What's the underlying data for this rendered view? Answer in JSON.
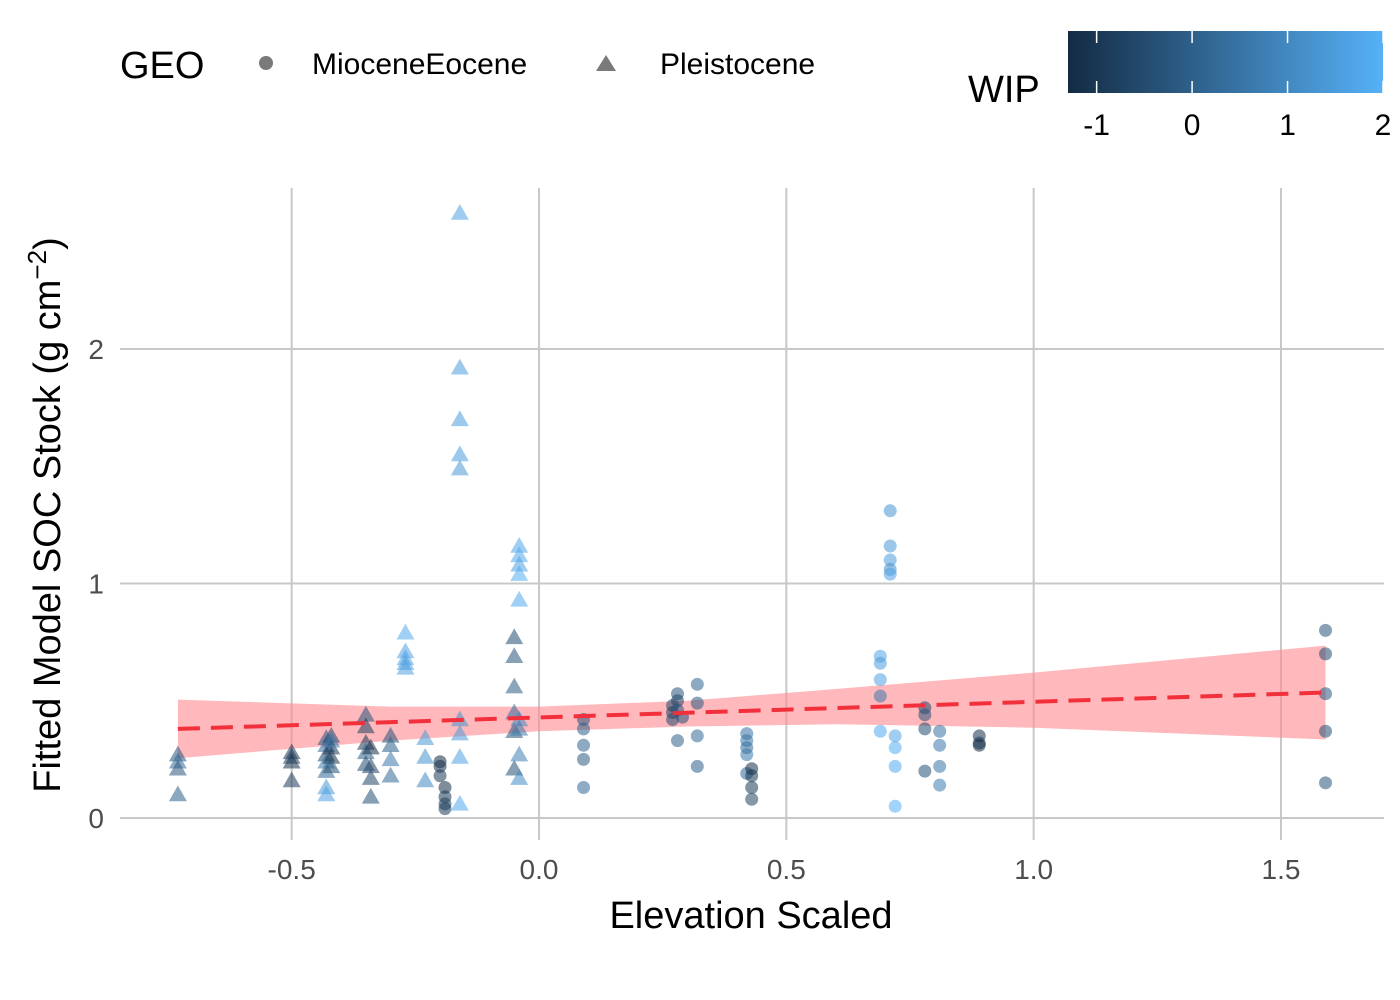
{
  "chart_data": {
    "type": "scatter",
    "title": "",
    "xlabel": "Elevation Scaled",
    "ylabel": "Fitted Model SOC Stock (g cm",
    "ylabel_sup": "−2",
    "ylabel_close": ")",
    "xlim": [
      -0.85,
      1.7
    ],
    "ylim": [
      -0.05,
      2.7
    ],
    "x_ticks": [
      -0.5,
      0.0,
      0.5,
      1.0,
      1.5
    ],
    "x_tick_labels": [
      "-0.5",
      "0.0",
      "0.5",
      "1.0",
      "1.5"
    ],
    "y_ticks": [
      0,
      1,
      2
    ],
    "y_tick_labels": [
      "0",
      "1",
      "2"
    ],
    "grid": true,
    "legend_position": "top",
    "shape_legend": {
      "title": "GEO",
      "items": [
        {
          "label": "MioceneEocene",
          "shape": "circle"
        },
        {
          "label": "Pleistocene",
          "shape": "triangle"
        }
      ]
    },
    "color_legend": {
      "title": "WIP",
      "range": [
        -1.3,
        2.0
      ],
      "ticks": [
        -1,
        0,
        1,
        2
      ],
      "tick_labels": [
        "-1",
        "0",
        "1",
        "2"
      ],
      "low_color": "#132b43",
      "high_color": "#56b1f7"
    },
    "trend": {
      "type": "linear",
      "line_color": "#f2303b",
      "band_color": "#ff8a90",
      "x": [
        -0.73,
        1.59
      ],
      "fit": [
        0.38,
        0.535
      ],
      "lower": [
        0.255,
        0.335
      ],
      "upper": [
        0.505,
        0.735
      ],
      "band_samples": [
        {
          "x": -0.73,
          "lower": 0.255,
          "upper": 0.505
        },
        {
          "x": -0.3,
          "lower": 0.33,
          "upper": 0.475
        },
        {
          "x": 0.0,
          "lower": 0.37,
          "upper": 0.475
        },
        {
          "x": 0.3,
          "lower": 0.39,
          "upper": 0.5
        },
        {
          "x": 0.6,
          "lower": 0.4,
          "upper": 0.55
        },
        {
          "x": 1.0,
          "lower": 0.385,
          "upper": 0.62
        },
        {
          "x": 1.59,
          "lower": 0.335,
          "upper": 0.735
        }
      ]
    },
    "series": [
      {
        "name": "Pleistocene",
        "shape": "triangle",
        "points": [
          {
            "x": -0.73,
            "y": 0.27,
            "wip": -0.3
          },
          {
            "x": -0.73,
            "y": 0.24,
            "wip": 0.2
          },
          {
            "x": -0.73,
            "y": 0.21,
            "wip": -0.2
          },
          {
            "x": -0.73,
            "y": 0.1,
            "wip": 0.0
          },
          {
            "x": -0.5,
            "y": 0.28,
            "wip": -1.0
          },
          {
            "x": -0.5,
            "y": 0.26,
            "wip": -0.8
          },
          {
            "x": -0.5,
            "y": 0.24,
            "wip": -1.1
          },
          {
            "x": -0.5,
            "y": 0.16,
            "wip": -0.9
          },
          {
            "x": -0.43,
            "y": 0.34,
            "wip": -0.2
          },
          {
            "x": -0.43,
            "y": 0.31,
            "wip": 0.3
          },
          {
            "x": -0.43,
            "y": 0.27,
            "wip": -0.6
          },
          {
            "x": -0.43,
            "y": 0.24,
            "wip": 0.6
          },
          {
            "x": -0.43,
            "y": 0.2,
            "wip": 0.2
          },
          {
            "x": -0.43,
            "y": 0.13,
            "wip": 1.4
          },
          {
            "x": -0.43,
            "y": 0.1,
            "wip": 1.6
          },
          {
            "x": -0.42,
            "y": 0.35,
            "wip": -0.5
          },
          {
            "x": -0.42,
            "y": 0.3,
            "wip": -0.9
          },
          {
            "x": -0.42,
            "y": 0.26,
            "wip": -1.1
          },
          {
            "x": -0.42,
            "y": 0.22,
            "wip": -0.4
          },
          {
            "x": -0.42,
            "y": 0.33,
            "wip": 0.5
          },
          {
            "x": -0.35,
            "y": 0.44,
            "wip": -0.3
          },
          {
            "x": -0.35,
            "y": 0.39,
            "wip": -0.8
          },
          {
            "x": -0.35,
            "y": 0.32,
            "wip": -1.0
          },
          {
            "x": -0.35,
            "y": 0.28,
            "wip": 0.0
          },
          {
            "x": -0.35,
            "y": 0.23,
            "wip": -0.5
          },
          {
            "x": -0.34,
            "y": 0.3,
            "wip": -1.2
          },
          {
            "x": -0.34,
            "y": 0.22,
            "wip": -0.7
          },
          {
            "x": -0.34,
            "y": 0.17,
            "wip": -0.6
          },
          {
            "x": -0.34,
            "y": 0.09,
            "wip": -0.4
          },
          {
            "x": -0.3,
            "y": 0.35,
            "wip": -0.3
          },
          {
            "x": -0.3,
            "y": 0.31,
            "wip": 0.0
          },
          {
            "x": -0.3,
            "y": 0.25,
            "wip": 0.6
          },
          {
            "x": -0.3,
            "y": 0.18,
            "wip": 0.2
          },
          {
            "x": -0.27,
            "y": 0.79,
            "wip": 1.8
          },
          {
            "x": -0.27,
            "y": 0.71,
            "wip": 1.6
          },
          {
            "x": -0.27,
            "y": 0.68,
            "wip": 1.7
          },
          {
            "x": -0.27,
            "y": 0.66,
            "wip": 1.5
          },
          {
            "x": -0.27,
            "y": 0.64,
            "wip": 1.6
          },
          {
            "x": -0.23,
            "y": 0.34,
            "wip": 1.4
          },
          {
            "x": -0.23,
            "y": 0.26,
            "wip": 1.2
          },
          {
            "x": -0.23,
            "y": 0.16,
            "wip": 1.0
          },
          {
            "x": -0.16,
            "y": 2.58,
            "wip": 1.6
          },
          {
            "x": -0.16,
            "y": 1.92,
            "wip": 1.5
          },
          {
            "x": -0.16,
            "y": 1.7,
            "wip": 1.5
          },
          {
            "x": -0.16,
            "y": 1.55,
            "wip": 1.5
          },
          {
            "x": -0.16,
            "y": 1.49,
            "wip": 1.4
          },
          {
            "x": -0.16,
            "y": 0.42,
            "wip": 1.2
          },
          {
            "x": -0.16,
            "y": 0.36,
            "wip": 1.4
          },
          {
            "x": -0.16,
            "y": 0.26,
            "wip": 1.6
          },
          {
            "x": -0.16,
            "y": 0.06,
            "wip": 1.8
          },
          {
            "x": -0.05,
            "y": 0.77,
            "wip": -0.5
          },
          {
            "x": -0.05,
            "y": 0.69,
            "wip": -0.3
          },
          {
            "x": -0.05,
            "y": 0.56,
            "wip": -0.1
          },
          {
            "x": -0.05,
            "y": 0.45,
            "wip": 0.3
          },
          {
            "x": -0.05,
            "y": 0.37,
            "wip": -0.2
          },
          {
            "x": -0.05,
            "y": 0.21,
            "wip": -0.4
          },
          {
            "x": -0.04,
            "y": 1.16,
            "wip": 1.7
          },
          {
            "x": -0.04,
            "y": 1.12,
            "wip": 1.8
          },
          {
            "x": -0.04,
            "y": 1.08,
            "wip": 1.6
          },
          {
            "x": -0.04,
            "y": 1.04,
            "wip": 1.9
          },
          {
            "x": -0.04,
            "y": 0.93,
            "wip": 1.8
          },
          {
            "x": -0.04,
            "y": 0.42,
            "wip": 1.0
          },
          {
            "x": -0.04,
            "y": 0.38,
            "wip": 0.6
          },
          {
            "x": -0.04,
            "y": 0.27,
            "wip": 0.8
          },
          {
            "x": -0.04,
            "y": 0.17,
            "wip": 1.1
          }
        ]
      },
      {
        "name": "MioceneEocene",
        "shape": "circle",
        "points": [
          {
            "x": -0.2,
            "y": 0.24,
            "wip": -1.3
          },
          {
            "x": -0.2,
            "y": 0.22,
            "wip": -1.1
          },
          {
            "x": -0.2,
            "y": 0.18,
            "wip": -0.9
          },
          {
            "x": -0.19,
            "y": 0.13,
            "wip": -1.2
          },
          {
            "x": -0.19,
            "y": 0.09,
            "wip": -1.0
          },
          {
            "x": -0.19,
            "y": 0.06,
            "wip": -0.8
          },
          {
            "x": -0.19,
            "y": 0.04,
            "wip": -0.9
          },
          {
            "x": 0.09,
            "y": 0.42,
            "wip": -0.3
          },
          {
            "x": 0.09,
            "y": 0.38,
            "wip": 0.0
          },
          {
            "x": 0.09,
            "y": 0.31,
            "wip": 0.1
          },
          {
            "x": 0.09,
            "y": 0.25,
            "wip": -0.1
          },
          {
            "x": 0.09,
            "y": 0.13,
            "wip": 0.2
          },
          {
            "x": 0.27,
            "y": 0.48,
            "wip": -0.6
          },
          {
            "x": 0.27,
            "y": 0.45,
            "wip": -0.8
          },
          {
            "x": 0.27,
            "y": 0.42,
            "wip": -0.5
          },
          {
            "x": 0.28,
            "y": 0.53,
            "wip": -0.3
          },
          {
            "x": 0.28,
            "y": 0.5,
            "wip": -0.7
          },
          {
            "x": 0.28,
            "y": 0.46,
            "wip": -0.2
          },
          {
            "x": 0.28,
            "y": 0.33,
            "wip": 0.0
          },
          {
            "x": 0.29,
            "y": 0.43,
            "wip": -0.4
          },
          {
            "x": 0.32,
            "y": 0.57,
            "wip": 0.1
          },
          {
            "x": 0.32,
            "y": 0.49,
            "wip": -0.2
          },
          {
            "x": 0.32,
            "y": 0.35,
            "wip": 0.2
          },
          {
            "x": 0.32,
            "y": 0.22,
            "wip": 0.0
          },
          {
            "x": 0.42,
            "y": 0.36,
            "wip": 0.4
          },
          {
            "x": 0.42,
            "y": 0.33,
            "wip": 0.5
          },
          {
            "x": 0.42,
            "y": 0.3,
            "wip": 0.3
          },
          {
            "x": 0.42,
            "y": 0.27,
            "wip": 0.6
          },
          {
            "x": 0.42,
            "y": 0.19,
            "wip": 0.2
          },
          {
            "x": 0.43,
            "y": 0.21,
            "wip": -1.2
          },
          {
            "x": 0.43,
            "y": 0.18,
            "wip": -1.0
          },
          {
            "x": 0.43,
            "y": 0.13,
            "wip": -0.9
          },
          {
            "x": 0.43,
            "y": 0.08,
            "wip": -0.7
          },
          {
            "x": 0.71,
            "y": 1.31,
            "wip": 1.3
          },
          {
            "x": 0.71,
            "y": 1.16,
            "wip": 1.4
          },
          {
            "x": 0.71,
            "y": 1.1,
            "wip": 1.5
          },
          {
            "x": 0.71,
            "y": 1.06,
            "wip": 1.2
          },
          {
            "x": 0.71,
            "y": 1.04,
            "wip": 1.6
          },
          {
            "x": 0.69,
            "y": 0.69,
            "wip": 1.7
          },
          {
            "x": 0.69,
            "y": 0.66,
            "wip": 1.5
          },
          {
            "x": 0.69,
            "y": 0.59,
            "wip": 1.6
          },
          {
            "x": 0.69,
            "y": 0.52,
            "wip": 0.6
          },
          {
            "x": 0.69,
            "y": 0.37,
            "wip": 1.8
          },
          {
            "x": 0.72,
            "y": 0.35,
            "wip": 1.7
          },
          {
            "x": 0.72,
            "y": 0.3,
            "wip": 1.9
          },
          {
            "x": 0.72,
            "y": 0.22,
            "wip": 1.8
          },
          {
            "x": 0.72,
            "y": 0.05,
            "wip": 2.0
          },
          {
            "x": 0.78,
            "y": 0.47,
            "wip": -0.6
          },
          {
            "x": 0.78,
            "y": 0.44,
            "wip": -0.3
          },
          {
            "x": 0.78,
            "y": 0.38,
            "wip": -0.5
          },
          {
            "x": 0.78,
            "y": 0.2,
            "wip": -0.4
          },
          {
            "x": 0.81,
            "y": 0.37,
            "wip": 0.4
          },
          {
            "x": 0.81,
            "y": 0.31,
            "wip": 0.6
          },
          {
            "x": 0.81,
            "y": 0.22,
            "wip": 0.5
          },
          {
            "x": 0.81,
            "y": 0.14,
            "wip": 0.7
          },
          {
            "x": 0.89,
            "y": 0.35,
            "wip": -1.1
          },
          {
            "x": 0.89,
            "y": 0.32,
            "wip": -0.9
          },
          {
            "x": 0.89,
            "y": 0.31,
            "wip": -1.3
          },
          {
            "x": 1.59,
            "y": 0.8,
            "wip": -0.3
          },
          {
            "x": 1.59,
            "y": 0.7,
            "wip": -0.5
          },
          {
            "x": 1.59,
            "y": 0.53,
            "wip": -0.2
          },
          {
            "x": 1.59,
            "y": 0.37,
            "wip": -0.4
          },
          {
            "x": 1.59,
            "y": 0.15,
            "wip": -0.3
          }
        ]
      }
    ]
  }
}
